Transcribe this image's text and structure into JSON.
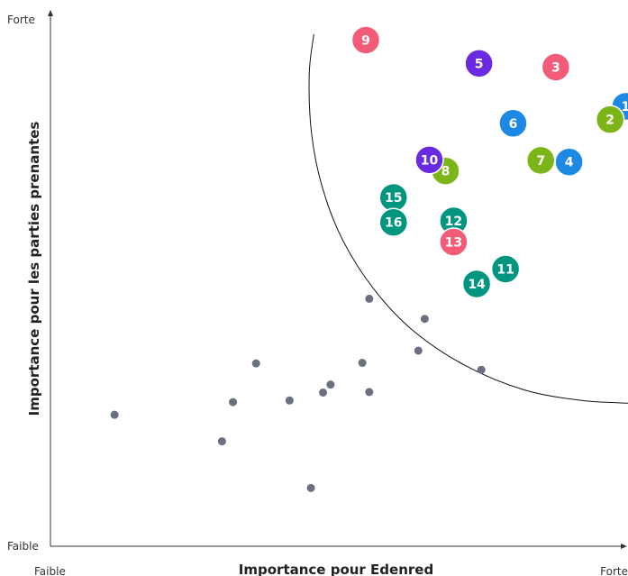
{
  "chart_data": {
    "type": "scatter",
    "xlabel": "Importance pour Edenred",
    "ylabel": "Importance pour les parties prenantes",
    "x_low_label": "Faible",
    "x_high_label": "Forte",
    "y_low_label": "Faible",
    "y_high_label": "Forte",
    "xlim": [
      0,
      100
    ],
    "ylim": [
      0,
      100
    ],
    "grid": false,
    "colors": {
      "blue": "#1e88e5",
      "green": "#7cb518",
      "pink": "#f25c78",
      "purple": "#6a2be0",
      "teal": "#00957e",
      "grey": "#6b7080",
      "axis": "#333333"
    },
    "labeled_issues": [
      {
        "label": "1",
        "color": "blue",
        "x": 99.6,
        "y": 83
      },
      {
        "label": "2",
        "color": "green",
        "x": 96.9,
        "y": 80.5
      },
      {
        "label": "3",
        "color": "pink",
        "x": 87.5,
        "y": 90.4
      },
      {
        "label": "4",
        "color": "blue",
        "x": 89.8,
        "y": 72.5
      },
      {
        "label": "5",
        "color": "purple",
        "x": 74.2,
        "y": 91.1
      },
      {
        "label": "6",
        "color": "blue",
        "x": 80.1,
        "y": 79.8
      },
      {
        "label": "7",
        "color": "green",
        "x": 84.9,
        "y": 72.8
      },
      {
        "label": "8",
        "color": "green",
        "x": 68.4,
        "y": 70.8
      },
      {
        "label": "9",
        "color": "pink",
        "x": 54.6,
        "y": 95.5
      },
      {
        "label": "10",
        "color": "purple",
        "x": 65.6,
        "y": 72.9
      },
      {
        "label": "11",
        "color": "teal",
        "x": 78.8,
        "y": 52.3
      },
      {
        "label": "12",
        "color": "teal",
        "x": 69.8,
        "y": 61.4
      },
      {
        "label": "13",
        "color": "pink",
        "x": 69.8,
        "y": 57.4
      },
      {
        "label": "14",
        "color": "teal",
        "x": 73.8,
        "y": 49.5
      },
      {
        "label": "15",
        "color": "teal",
        "x": 59.4,
        "y": 65.8
      },
      {
        "label": "16",
        "color": "teal",
        "x": 59.4,
        "y": 61.1
      }
    ],
    "minor_issues": [
      {
        "x": 11.1,
        "y": 24.8
      },
      {
        "x": 29.7,
        "y": 19.8
      },
      {
        "x": 31.6,
        "y": 27.2
      },
      {
        "x": 35.6,
        "y": 34.5
      },
      {
        "x": 41.4,
        "y": 27.5
      },
      {
        "x": 45.1,
        "y": 11.0
      },
      {
        "x": 47.2,
        "y": 29.0
      },
      {
        "x": 48.5,
        "y": 30.5
      },
      {
        "x": 54.0,
        "y": 34.6
      },
      {
        "x": 55.2,
        "y": 46.7
      },
      {
        "x": 55.2,
        "y": 29.1
      },
      {
        "x": 63.7,
        "y": 36.9
      },
      {
        "x": 64.8,
        "y": 42.9
      },
      {
        "x": 74.6,
        "y": 33.3
      }
    ],
    "threshold_curve": [
      [
        45.6,
        96.6
      ],
      [
        44.8,
        89.0
      ],
      [
        45.2,
        78.0
      ],
      [
        47.0,
        68.0
      ],
      [
        50.5,
        58.0
      ],
      [
        56.0,
        48.5
      ],
      [
        63.0,
        40.5
      ],
      [
        72.0,
        34.0
      ],
      [
        82.0,
        29.5
      ],
      [
        92.0,
        27.5
      ],
      [
        100.0,
        27.0
      ]
    ]
  }
}
